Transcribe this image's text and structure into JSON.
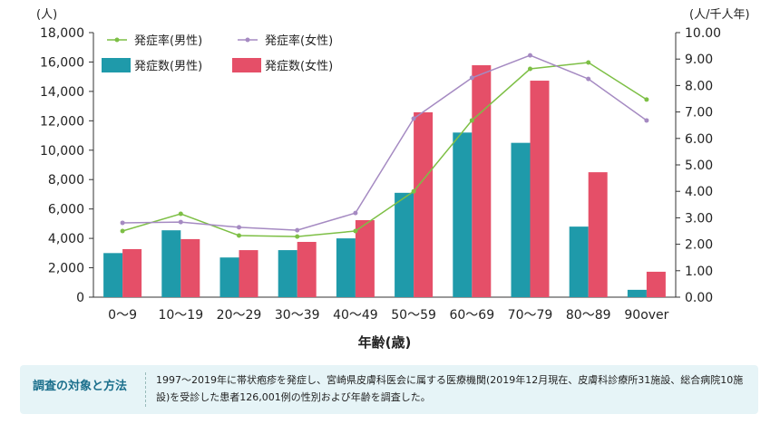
{
  "chart_data": {
    "type": "bar+line",
    "categories": [
      "0〜9",
      "10〜19",
      "20〜29",
      "30〜39",
      "40〜49",
      "50〜59",
      "60〜69",
      "70〜79",
      "80〜89",
      "90over"
    ],
    "xlabel": "年齢(歳)",
    "ylabel_left": "(人)",
    "ylabel_right": "(人/千人年)",
    "ylim_left": [
      0,
      18000
    ],
    "ylim_right": [
      0,
      10
    ],
    "yticks_left": [
      "0",
      "2,000",
      "4,000",
      "6,000",
      "8,000",
      "10,000",
      "12,000",
      "14,000",
      "16,000",
      "18,000"
    ],
    "yticks_right": [
      "0.00",
      "1.00",
      "2.00",
      "3.00",
      "4.00",
      "5.00",
      "6.00",
      "7.00",
      "8.00",
      "9.00",
      "10.00"
    ],
    "legend_placement": "top-left",
    "bars": [
      {
        "name": "発症数(男性)",
        "color": "#1f9aaa",
        "axis": "left",
        "values": [
          3000,
          4550,
          2700,
          3200,
          4000,
          7100,
          11200,
          10500,
          4800,
          500
        ]
      },
      {
        "name": "発症数(女性)",
        "color": "#e54f68",
        "axis": "left",
        "values": [
          3270,
          3950,
          3200,
          3760,
          5240,
          12580,
          15780,
          14730,
          8500,
          1730
        ]
      }
    ],
    "lines": [
      {
        "name": "発症率(男性)",
        "color": "#7dbf45",
        "axis": "right",
        "values": [
          2.5,
          3.15,
          2.33,
          2.29,
          2.5,
          4.0,
          6.68,
          8.63,
          8.87,
          7.47
        ]
      },
      {
        "name": "発症率(女性)",
        "color": "#a58ac2",
        "axis": "right",
        "values": [
          2.81,
          2.84,
          2.64,
          2.53,
          3.18,
          6.75,
          8.29,
          9.14,
          8.25,
          6.68
        ]
      }
    ]
  },
  "note": {
    "title": "調査の対象と方法",
    "body": "1997〜2019年に帯状疱疹を発症し、宮崎県皮膚科医会に属する医療機関(2019年12月現在、皮膚科診療所31施設、総合病院10施設)を受診した患者126,001例の性別および年齢を調査した。"
  }
}
